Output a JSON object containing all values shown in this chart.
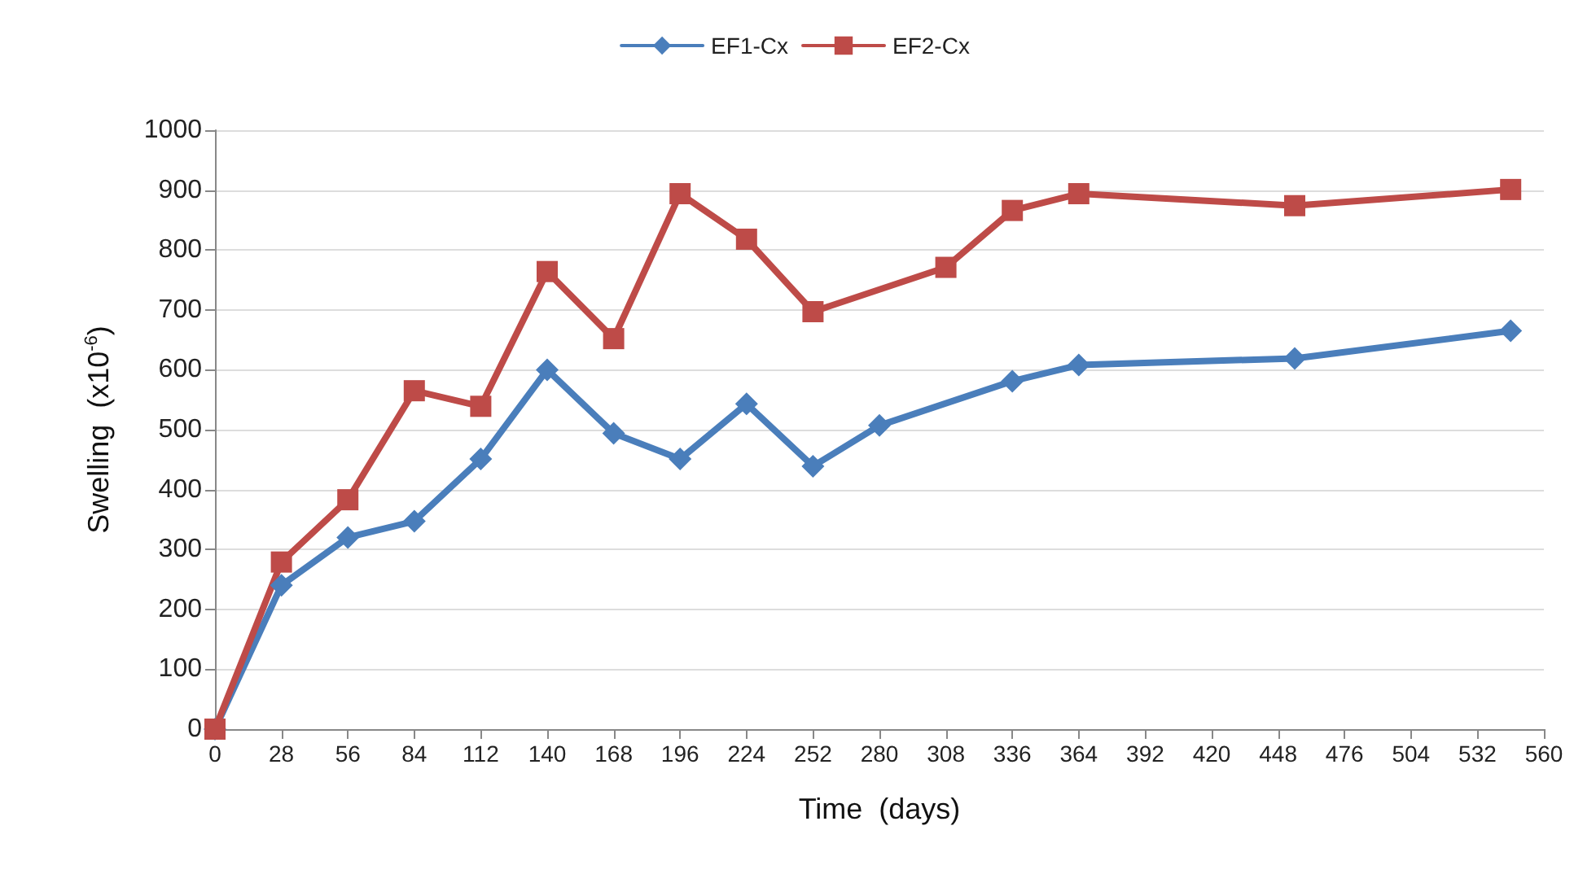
{
  "chart_data": {
    "type": "line",
    "xlabel": "Time  (days)",
    "ylabel": "Swelling  (x10$^{-6}$)",
    "xlim": [
      0,
      560
    ],
    "xticks": [
      0,
      28,
      56,
      84,
      112,
      140,
      168,
      196,
      224,
      252,
      280,
      308,
      336,
      364,
      392,
      420,
      448,
      476,
      504,
      532,
      560
    ],
    "ylim": [
      0,
      1000
    ],
    "yticks": [
      0,
      100,
      200,
      300,
      400,
      500,
      600,
      700,
      800,
      900,
      1000
    ],
    "grid": "y",
    "legend": "top",
    "line_style": "solid",
    "series": [
      {
        "name": "EF1-Cx",
        "color": "#4a7ebb",
        "marker": "diamond",
        "x": [
          0,
          28,
          56,
          84,
          112,
          140,
          168,
          196,
          224,
          252,
          280,
          336,
          364,
          455,
          546
        ],
        "values": [
          0,
          240,
          320,
          347,
          451,
          600,
          494,
          451,
          543,
          439,
          507,
          581,
          608,
          619,
          665
        ]
      },
      {
        "name": "EF2-Cx",
        "color": "#be4b48",
        "marker": "square",
        "x": [
          0,
          28,
          56,
          84,
          112,
          140,
          168,
          196,
          224,
          252,
          308,
          336,
          364,
          455,
          546
        ],
        "values": [
          0,
          279,
          383,
          565,
          539,
          764,
          652,
          894,
          818,
          697,
          771,
          866,
          894,
          874,
          901
        ]
      }
    ]
  }
}
